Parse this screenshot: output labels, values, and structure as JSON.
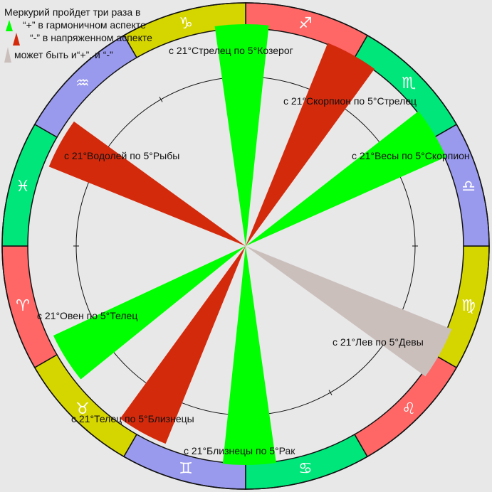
{
  "colors": {
    "background": "#e8e8e8",
    "positive": "#00ff00",
    "negative": "#d42a0c",
    "neutral": "#cbbfbc",
    "ring_red": "#ff6666",
    "ring_green": "#00e67a",
    "ring_yellow": "#d5d500",
    "ring_blue": "#9999ee"
  },
  "legend": {
    "title": "Меркурий пройдет три раза в",
    "plus": "“+” в гармоничном аспекте",
    "minus": "“-” в напряженном аспекте",
    "both": "может быть и“+”, и “-”"
  },
  "signs": [
    {
      "name": "aries",
      "glyph": "♈",
      "color": "ring_red"
    },
    {
      "name": "taurus",
      "glyph": "♉",
      "color": "ring_yellow"
    },
    {
      "name": "gemini",
      "glyph": "♊",
      "color": "ring_blue"
    },
    {
      "name": "cancer",
      "glyph": "♋",
      "color": "ring_green"
    },
    {
      "name": "leo",
      "glyph": "♌",
      "color": "ring_red"
    },
    {
      "name": "virgo",
      "glyph": "♍",
      "color": "ring_yellow"
    },
    {
      "name": "libra",
      "glyph": "♎",
      "color": "ring_blue"
    },
    {
      "name": "scorpio",
      "glyph": "♏",
      "color": "ring_green"
    },
    {
      "name": "sagittarius",
      "glyph": "♐",
      "color": "ring_red"
    },
    {
      "name": "capricorn",
      "glyph": "♑",
      "color": "ring_yellow"
    },
    {
      "name": "aquarius",
      "glyph": "♒",
      "color": "ring_blue"
    },
    {
      "name": "pisces",
      "glyph": "♓",
      "color": "ring_green"
    }
  ],
  "transits": [
    {
      "id": "sagittarius-capricorn",
      "label": "с 21°Стрелец по 5°Козерог",
      "kind": "positive"
    },
    {
      "id": "scorpio-sagittarius",
      "label": "с 21°Скорпион по 5°Стрелец",
      "kind": "negative"
    },
    {
      "id": "libra-scorpio",
      "label": "с 21°Весы по 5°Скорпион",
      "kind": "positive"
    },
    {
      "id": "aquarius-pisces",
      "label": "с 21°Водолей по 5°Рыбы",
      "kind": "negative"
    },
    {
      "id": "aries-taurus",
      "label": "с 21°Овен по 5°Телец",
      "kind": "positive"
    },
    {
      "id": "leo-virgo",
      "label": "с 21°Лев по 5°Девы",
      "kind": "neutral"
    },
    {
      "id": "taurus-gemini",
      "label": "с 21°Телец по 5°Близнецы",
      "kind": "negative"
    },
    {
      "id": "gemini-cancer",
      "label": "с 21°Близнецы по 5°Рак",
      "kind": "positive"
    }
  ]
}
